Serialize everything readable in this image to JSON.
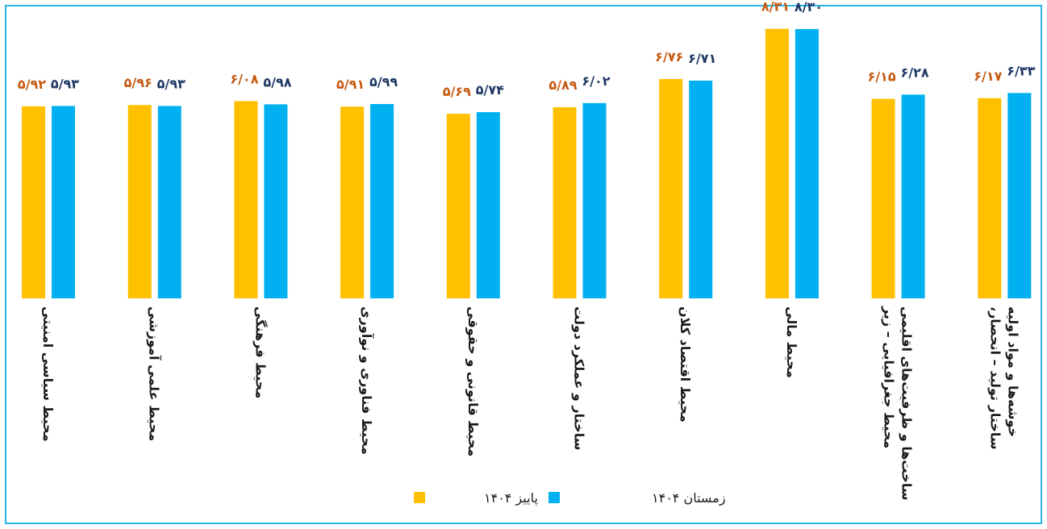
{
  "chart_data": {
    "type": "bar",
    "title": "",
    "xlabel": "",
    "ylabel": "",
    "ylim": [
      0,
      8.6
    ],
    "grid": false,
    "legend_position": "bottom",
    "categories": [
      [
        "محیط سیاسی امنیتی"
      ],
      [
        "محیط علمی آموزشی"
      ],
      [
        "محیط فرهنگی"
      ],
      [
        "محیط فناوری و نوآوری"
      ],
      [
        "محیط قانونی و حقوقی"
      ],
      [
        "ساختار و عملکرد دولت"
      ],
      [
        "محیط اقتصاد کلان"
      ],
      [
        "محیط مالی"
      ],
      [
        "محیط جغرافیایی – زیر",
        "ساخت‌ها و ظرفیت‌های اقلیمی"
      ],
      [
        "ساختار تولید – انحصار،",
        "خوشه‌ها و مواد اولیه"
      ]
    ],
    "series": [
      {
        "name": "پاییز ۱۴۰۴",
        "color": "#ffc000",
        "values": [
          5.92,
          5.96,
          6.08,
          5.91,
          5.69,
          5.89,
          6.76,
          8.31,
          6.15,
          6.17
        ],
        "labels": [
          "۵/۹۲",
          "۵/۹۶",
          "۶/۰۸",
          "۵/۹۱",
          "۵/۶۹",
          "۵/۸۹",
          "۶/۷۶",
          "۸/۳۱",
          "۶/۱۵",
          "۶/۱۷"
        ]
      },
      {
        "name": "زمستان ۱۴۰۴",
        "color": "#00b0f0",
        "values": [
          5.93,
          5.93,
          5.98,
          5.99,
          5.74,
          6.02,
          6.71,
          8.3,
          6.28,
          6.33
        ],
        "labels": [
          "۵/۹۳",
          "۵/۹۳",
          "۵/۹۸",
          "۵/۹۹",
          "۵/۷۴",
          "۶/۰۲",
          "۶/۷۱",
          "۸/۳۰",
          "۶/۲۸",
          "۶/۳۳"
        ]
      }
    ],
    "label_colors": [
      "#c55a11",
      "#1f3864"
    ]
  }
}
